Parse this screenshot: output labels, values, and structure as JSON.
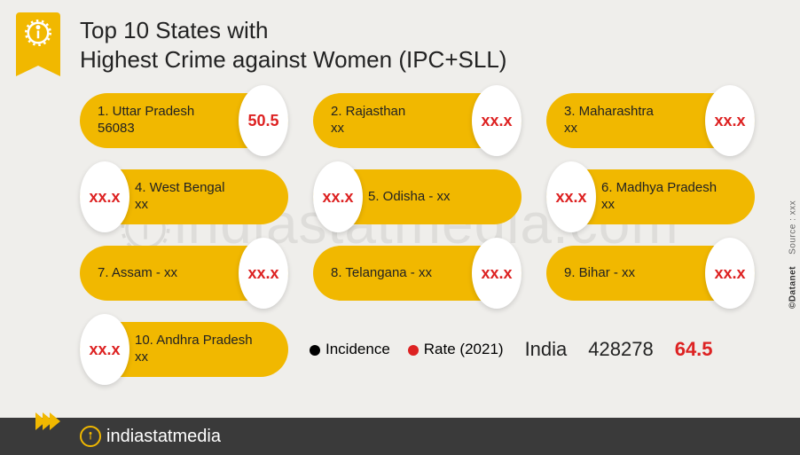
{
  "title_line1": "Top 10 States with",
  "title_line2": "Highest Crime against Women (IPC+SLL)",
  "colors": {
    "accent": "#f1b800",
    "rate": "#d22222",
    "bg": "#efeeeb",
    "footer": "#3a3a3a"
  },
  "cards": [
    {
      "rank": "1.",
      "state": "Uttar Pradesh",
      "incidence": "56083",
      "rate": "50.5",
      "bubble": "right",
      "inline": false
    },
    {
      "rank": "2.",
      "state": "Rajasthan",
      "incidence": "xx",
      "rate": "xx.x",
      "bubble": "right",
      "inline": false
    },
    {
      "rank": "3.",
      "state": "Maharashtra",
      "incidence": "xx",
      "rate": "xx.x",
      "bubble": "right",
      "inline": false
    },
    {
      "rank": "4.",
      "state": "West Bengal",
      "incidence": "xx",
      "rate": "xx.x",
      "bubble": "left",
      "inline": false
    },
    {
      "rank": "5.",
      "state": "Odisha - ",
      "incidence": "xx",
      "rate": "xx.x",
      "bubble": "left",
      "inline": true
    },
    {
      "rank": "6.",
      "state": "Madhya Pradesh",
      "incidence": "xx",
      "rate": "xx.x",
      "bubble": "left",
      "inline": false
    },
    {
      "rank": "7.",
      "state": "Assam - ",
      "incidence": "xx",
      "rate": "xx.x",
      "bubble": "right",
      "inline": true
    },
    {
      "rank": "8.",
      "state": "Telangana - ",
      "incidence": "xx",
      "rate": "xx.x",
      "bubble": "right",
      "inline": true
    },
    {
      "rank": "9.",
      "state": "Bihar - ",
      "incidence": "xx",
      "rate": "xx.x",
      "bubble": "right",
      "inline": true
    },
    {
      "rank": "10.",
      "state": "Andhra Pradesh",
      "incidence": "xx",
      "rate": "xx.x",
      "bubble": "left",
      "inline": false
    }
  ],
  "legend": {
    "incidence_label": "Incidence",
    "rate_label": "Rate (2021)"
  },
  "india": {
    "label": "India",
    "incidence": "428278",
    "rate": "64.5"
  },
  "footer_brand": "indiastatmedia",
  "watermark_text": "indiastatmedia.com",
  "side_credit": "©Datanet",
  "side_source": "Source : xxx"
}
